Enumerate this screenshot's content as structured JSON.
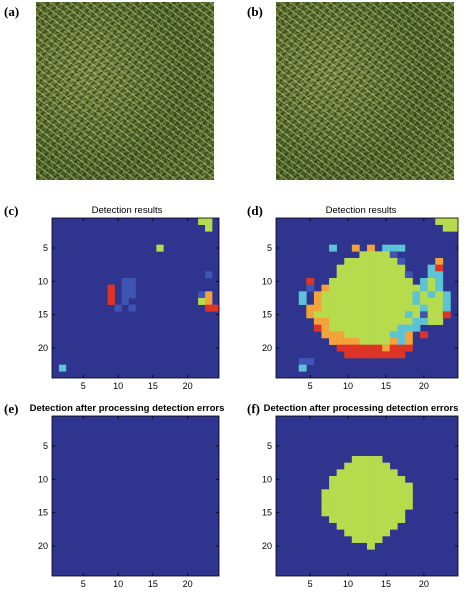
{
  "panels": {
    "a": {
      "letter": "(a)"
    },
    "b": {
      "letter": "(b)"
    },
    "c": {
      "letter": "(c)",
      "title": "Detection results"
    },
    "d": {
      "letter": "(d)",
      "title": "Detection results"
    },
    "e": {
      "letter": "(e)",
      "title": "Detection after processing detection errors"
    },
    "f": {
      "letter": "(f)",
      "title": "Detection after processing detection errors"
    }
  },
  "chart_data": [
    {
      "panel": "c",
      "type": "heatmap",
      "title": "Detection results",
      "xlim": [
        0.5,
        24.5
      ],
      "ylim": [
        0.5,
        24.5
      ],
      "y_reversed": true,
      "xticks": [
        5,
        10,
        15,
        20
      ],
      "yticks": [
        5,
        10,
        15,
        20
      ],
      "background_color": "#2f358f",
      "palette": {
        "1": "#3e55b3",
        "2": "#5cc4d6",
        "3": "#b6dc4e",
        "4": "#f2a33a",
        "5": "#de3327"
      },
      "cells": [
        [
          22,
          1,
          3
        ],
        [
          23,
          1,
          3
        ],
        [
          23,
          2,
          3
        ],
        [
          16,
          5,
          3
        ],
        [
          23,
          9,
          1
        ],
        [
          11,
          10,
          1
        ],
        [
          12,
          10,
          1
        ],
        [
          11,
          11,
          1
        ],
        [
          12,
          11,
          1
        ],
        [
          11,
          12,
          1
        ],
        [
          12,
          12,
          1
        ],
        [
          11,
          13,
          1
        ],
        [
          10,
          14,
          1
        ],
        [
          12,
          14,
          1
        ],
        [
          9,
          11,
          5
        ],
        [
          9,
          12,
          5
        ],
        [
          9,
          13,
          5
        ],
        [
          22,
          12,
          1
        ],
        [
          23,
          12,
          4
        ],
        [
          22,
          13,
          3
        ],
        [
          23,
          13,
          4
        ],
        [
          23,
          14,
          5
        ],
        [
          24,
          14,
          5
        ],
        [
          2,
          23,
          2
        ]
      ]
    },
    {
      "panel": "d",
      "type": "heatmap",
      "title": "Detection results",
      "xlim": [
        0.5,
        24.5
      ],
      "ylim": [
        0.5,
        24.5
      ],
      "y_reversed": true,
      "xticks": [
        5,
        10,
        15,
        20
      ],
      "yticks": [
        5,
        10,
        15,
        20
      ],
      "background_color": "#2f358f",
      "palette": {
        "1": "#3e55b3",
        "2": "#5cc4d6",
        "3": "#b6dc4e",
        "4": "#f2a33a",
        "5": "#de3327"
      },
      "cells": [
        [
          22,
          1,
          3
        ],
        [
          23,
          1,
          3
        ],
        [
          24,
          1,
          3
        ],
        [
          23,
          2,
          3
        ],
        [
          24,
          2,
          3
        ],
        [
          8,
          5,
          2
        ],
        [
          11,
          5,
          4
        ],
        [
          13,
          5,
          4
        ],
        [
          15,
          5,
          2
        ],
        [
          16,
          5,
          2
        ],
        [
          17,
          5,
          2
        ],
        [
          12,
          6,
          3
        ],
        [
          13,
          6,
          3
        ],
        [
          14,
          6,
          3
        ],
        [
          15,
          6,
          3
        ],
        [
          16,
          6,
          1
        ],
        [
          10,
          7,
          3
        ],
        [
          11,
          7,
          3
        ],
        [
          12,
          7,
          3
        ],
        [
          13,
          7,
          3
        ],
        [
          14,
          7,
          3
        ],
        [
          15,
          7,
          3
        ],
        [
          16,
          7,
          3
        ],
        [
          17,
          7,
          1
        ],
        [
          22,
          7,
          4
        ],
        [
          9,
          8,
          3
        ],
        [
          10,
          8,
          3
        ],
        [
          11,
          8,
          3
        ],
        [
          12,
          8,
          3
        ],
        [
          13,
          8,
          3
        ],
        [
          14,
          8,
          3
        ],
        [
          15,
          8,
          3
        ],
        [
          16,
          8,
          3
        ],
        [
          17,
          8,
          3
        ],
        [
          21,
          8,
          2
        ],
        [
          22,
          8,
          5
        ],
        [
          9,
          9,
          3
        ],
        [
          10,
          9,
          3
        ],
        [
          11,
          9,
          3
        ],
        [
          12,
          9,
          3
        ],
        [
          13,
          9,
          3
        ],
        [
          14,
          9,
          3
        ],
        [
          15,
          9,
          3
        ],
        [
          16,
          9,
          3
        ],
        [
          17,
          9,
          3
        ],
        [
          18,
          9,
          1
        ],
        [
          21,
          9,
          2
        ],
        [
          22,
          9,
          2
        ],
        [
          5,
          10,
          5
        ],
        [
          8,
          10,
          3
        ],
        [
          9,
          10,
          3
        ],
        [
          10,
          10,
          3
        ],
        [
          11,
          10,
          3
        ],
        [
          12,
          10,
          3
        ],
        [
          13,
          10,
          3
        ],
        [
          14,
          10,
          3
        ],
        [
          15,
          10,
          3
        ],
        [
          16,
          10,
          3
        ],
        [
          17,
          10,
          3
        ],
        [
          18,
          10,
          3
        ],
        [
          20,
          10,
          2
        ],
        [
          21,
          10,
          3
        ],
        [
          22,
          10,
          2
        ],
        [
          5,
          11,
          1
        ],
        [
          7,
          11,
          4
        ],
        [
          8,
          11,
          3
        ],
        [
          9,
          11,
          3
        ],
        [
          10,
          11,
          3
        ],
        [
          11,
          11,
          3
        ],
        [
          12,
          11,
          3
        ],
        [
          13,
          11,
          3
        ],
        [
          14,
          11,
          3
        ],
        [
          15,
          11,
          3
        ],
        [
          16,
          11,
          3
        ],
        [
          17,
          11,
          3
        ],
        [
          18,
          11,
          3
        ],
        [
          19,
          11,
          3
        ],
        [
          20,
          11,
          2
        ],
        [
          21,
          11,
          3
        ],
        [
          22,
          11,
          2
        ],
        [
          4,
          12,
          2
        ],
        [
          6,
          12,
          4
        ],
        [
          7,
          12,
          3
        ],
        [
          8,
          12,
          3
        ],
        [
          9,
          12,
          3
        ],
        [
          10,
          12,
          3
        ],
        [
          11,
          12,
          3
        ],
        [
          12,
          12,
          3
        ],
        [
          13,
          12,
          3
        ],
        [
          14,
          12,
          3
        ],
        [
          15,
          12,
          3
        ],
        [
          16,
          12,
          3
        ],
        [
          17,
          12,
          3
        ],
        [
          18,
          12,
          3
        ],
        [
          19,
          12,
          2
        ],
        [
          20,
          12,
          3
        ],
        [
          21,
          12,
          2
        ],
        [
          22,
          12,
          3
        ],
        [
          23,
          12,
          2
        ],
        [
          4,
          13,
          2
        ],
        [
          6,
          13,
          4
        ],
        [
          7,
          13,
          3
        ],
        [
          8,
          13,
          3
        ],
        [
          9,
          13,
          3
        ],
        [
          10,
          13,
          3
        ],
        [
          11,
          13,
          3
        ],
        [
          12,
          13,
          3
        ],
        [
          13,
          13,
          3
        ],
        [
          14,
          13,
          3
        ],
        [
          15,
          13,
          3
        ],
        [
          16,
          13,
          3
        ],
        [
          17,
          13,
          3
        ],
        [
          18,
          13,
          3
        ],
        [
          19,
          13,
          2
        ],
        [
          20,
          13,
          3
        ],
        [
          21,
          13,
          3
        ],
        [
          22,
          13,
          3
        ],
        [
          23,
          13,
          2
        ],
        [
          5,
          14,
          4
        ],
        [
          6,
          14,
          4
        ],
        [
          7,
          14,
          3
        ],
        [
          8,
          14,
          3
        ],
        [
          9,
          14,
          3
        ],
        [
          10,
          14,
          3
        ],
        [
          11,
          14,
          3
        ],
        [
          12,
          14,
          3
        ],
        [
          13,
          14,
          3
        ],
        [
          14,
          14,
          3
        ],
        [
          15,
          14,
          3
        ],
        [
          16,
          14,
          3
        ],
        [
          17,
          14,
          3
        ],
        [
          18,
          14,
          3
        ],
        [
          19,
          14,
          3
        ],
        [
          20,
          14,
          2
        ],
        [
          21,
          14,
          3
        ],
        [
          22,
          14,
          3
        ],
        [
          23,
          14,
          2
        ],
        [
          5,
          15,
          4
        ],
        [
          6,
          15,
          3
        ],
        [
          7,
          15,
          3
        ],
        [
          8,
          15,
          3
        ],
        [
          9,
          15,
          3
        ],
        [
          10,
          15,
          3
        ],
        [
          11,
          15,
          3
        ],
        [
          12,
          15,
          3
        ],
        [
          13,
          15,
          3
        ],
        [
          14,
          15,
          3
        ],
        [
          15,
          15,
          3
        ],
        [
          16,
          15,
          3
        ],
        [
          17,
          15,
          3
        ],
        [
          18,
          15,
          2
        ],
        [
          19,
          15,
          3
        ],
        [
          20,
          15,
          1
        ],
        [
          21,
          15,
          3
        ],
        [
          22,
          15,
          3
        ],
        [
          23,
          15,
          5
        ],
        [
          6,
          16,
          4
        ],
        [
          7,
          16,
          4
        ],
        [
          8,
          16,
          3
        ],
        [
          9,
          16,
          3
        ],
        [
          10,
          16,
          3
        ],
        [
          11,
          16,
          3
        ],
        [
          12,
          16,
          3
        ],
        [
          13,
          16,
          3
        ],
        [
          14,
          16,
          3
        ],
        [
          15,
          16,
          3
        ],
        [
          16,
          16,
          3
        ],
        [
          17,
          16,
          3
        ],
        [
          18,
          16,
          3
        ],
        [
          19,
          16,
          2
        ],
        [
          20,
          16,
          2
        ],
        [
          21,
          16,
          3
        ],
        [
          22,
          16,
          3
        ],
        [
          6,
          17,
          5
        ],
        [
          7,
          17,
          4
        ],
        [
          8,
          17,
          3
        ],
        [
          9,
          17,
          3
        ],
        [
          10,
          17,
          3
        ],
        [
          11,
          17,
          3
        ],
        [
          12,
          17,
          3
        ],
        [
          13,
          17,
          3
        ],
        [
          14,
          17,
          3
        ],
        [
          15,
          17,
          3
        ],
        [
          16,
          17,
          3
        ],
        [
          17,
          17,
          2
        ],
        [
          18,
          17,
          2
        ],
        [
          19,
          17,
          2
        ],
        [
          7,
          18,
          4
        ],
        [
          8,
          18,
          4
        ],
        [
          9,
          18,
          4
        ],
        [
          10,
          18,
          3
        ],
        [
          11,
          18,
          3
        ],
        [
          12,
          18,
          3
        ],
        [
          13,
          18,
          3
        ],
        [
          14,
          18,
          3
        ],
        [
          15,
          18,
          3
        ],
        [
          16,
          18,
          2
        ],
        [
          17,
          18,
          2
        ],
        [
          18,
          18,
          4
        ],
        [
          20,
          18,
          5
        ],
        [
          8,
          19,
          4
        ],
        [
          9,
          19,
          4
        ],
        [
          10,
          19,
          4
        ],
        [
          11,
          19,
          4
        ],
        [
          12,
          19,
          3
        ],
        [
          13,
          19,
          3
        ],
        [
          14,
          19,
          3
        ],
        [
          15,
          19,
          3
        ],
        [
          16,
          19,
          4
        ],
        [
          17,
          19,
          2
        ],
        [
          18,
          19,
          4
        ],
        [
          9,
          20,
          5
        ],
        [
          10,
          20,
          5
        ],
        [
          11,
          20,
          5
        ],
        [
          12,
          20,
          5
        ],
        [
          13,
          20,
          5
        ],
        [
          14,
          20,
          5
        ],
        [
          15,
          20,
          4
        ],
        [
          16,
          20,
          5
        ],
        [
          17,
          20,
          5
        ],
        [
          18,
          20,
          5
        ],
        [
          10,
          21,
          5
        ],
        [
          11,
          21,
          5
        ],
        [
          12,
          21,
          5
        ],
        [
          13,
          21,
          5
        ],
        [
          14,
          21,
          5
        ],
        [
          15,
          21,
          5
        ],
        [
          16,
          21,
          5
        ],
        [
          17,
          21,
          5
        ],
        [
          4,
          22,
          1
        ],
        [
          5,
          22,
          1
        ],
        [
          4,
          23,
          2
        ]
      ]
    },
    {
      "panel": "e",
      "type": "heatmap",
      "title": "Detection after processing detection errors",
      "xlim": [
        0.5,
        24.5
      ],
      "ylim": [
        0.5,
        24.5
      ],
      "y_reversed": true,
      "xticks": [
        5,
        10,
        15,
        20
      ],
      "yticks": [
        5,
        10,
        15,
        20
      ],
      "background_color": "#2f358f",
      "palette": {
        "3": "#b6dc4e"
      },
      "cells": []
    },
    {
      "panel": "f",
      "type": "heatmap",
      "title": "Detection after processing detection errors",
      "xlim": [
        0.5,
        24.5
      ],
      "ylim": [
        0.5,
        24.5
      ],
      "y_reversed": true,
      "xticks": [
        5,
        10,
        15,
        20
      ],
      "yticks": [
        5,
        10,
        15,
        20
      ],
      "background_color": "#2f358f",
      "palette": {
        "3": "#b6dc4e"
      },
      "rows": [
        {
          "y": 7,
          "x_from": 11,
          "x_to": 14
        },
        {
          "y": 8,
          "x_from": 10,
          "x_to": 15
        },
        {
          "y": 9,
          "x_from": 9,
          "x_to": 16
        },
        {
          "y": 10,
          "x_from": 8,
          "x_to": 17
        },
        {
          "y": 11,
          "x_from": 8,
          "x_to": 18
        },
        {
          "y": 12,
          "x_from": 7,
          "x_to": 18
        },
        {
          "y": 13,
          "x_from": 7,
          "x_to": 18
        },
        {
          "y": 14,
          "x_from": 7,
          "x_to": 18
        },
        {
          "y": 15,
          "x_from": 7,
          "x_to": 17
        },
        {
          "y": 16,
          "x_from": 8,
          "x_to": 17
        },
        {
          "y": 17,
          "x_from": 9,
          "x_to": 16
        },
        {
          "y": 18,
          "x_from": 10,
          "x_to": 15
        },
        {
          "y": 19,
          "x_from": 11,
          "x_to": 14
        },
        {
          "y": 20,
          "x_from": 13,
          "x_to": 13
        }
      ]
    }
  ]
}
